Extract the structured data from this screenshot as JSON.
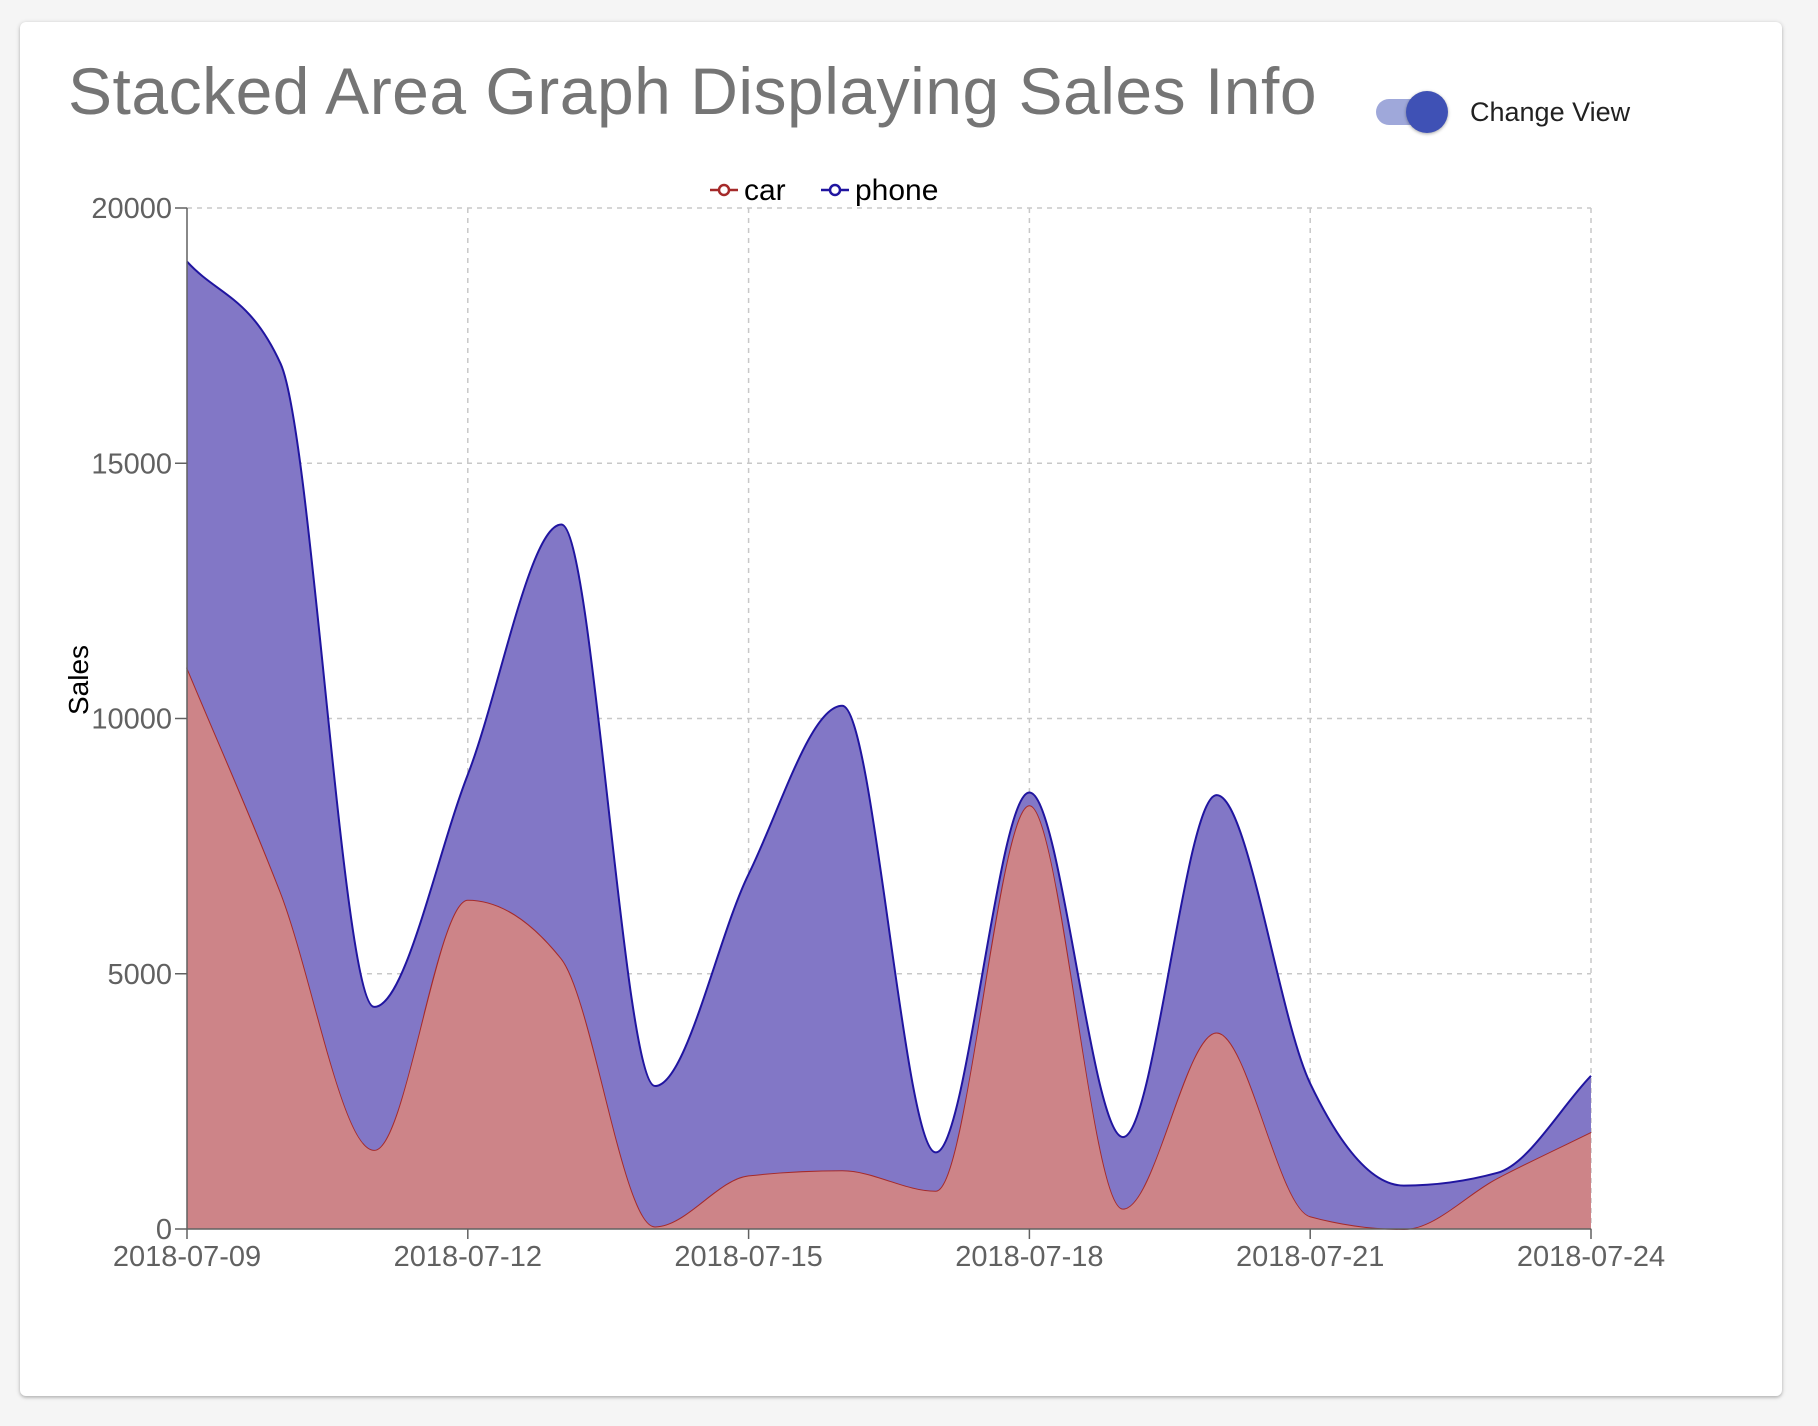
{
  "header": {
    "title": "Stacked Area Graph Displaying Sales Info",
    "toggle_label": "Change View",
    "toggle_on": true,
    "toggle_color": "#3f51b5"
  },
  "chart_data": {
    "type": "area",
    "stacked": true,
    "curve": "smooth",
    "ylabel": "Sales",
    "xlabel": "",
    "ylim": [
      0,
      20000
    ],
    "yticks": [
      0,
      5000,
      10000,
      15000,
      20000
    ],
    "x": [
      "2018-07-09",
      "2018-07-10",
      "2018-07-11",
      "2018-07-12",
      "2018-07-13",
      "2018-07-14",
      "2018-07-15",
      "2018-07-16",
      "2018-07-17",
      "2018-07-18",
      "2018-07-19",
      "2018-07-20",
      "2018-07-21",
      "2018-07-22",
      "2018-07-23",
      "2018-07-24"
    ],
    "xticks": [
      "2018-07-09",
      "2018-07-12",
      "2018-07-15",
      "2018-07-18",
      "2018-07-21",
      "2018-07-24"
    ],
    "grid": true,
    "legend_position": "top-center",
    "series": [
      {
        "name": "car",
        "color": "#a52a2a",
        "fill": "#cd8488",
        "values": [
          11000,
          6600,
          1550,
          6450,
          5300,
          50,
          1050,
          1150,
          750,
          8300,
          400,
          3850,
          250,
          0,
          1000,
          1900
        ]
      },
      {
        "name": "phone",
        "color": "#2015a0",
        "fill": "#8277c6",
        "values": [
          7950,
          10350,
          2800,
          2450,
          8500,
          2750,
          5900,
          9100,
          750,
          250,
          1400,
          4650,
          2600,
          850,
          100,
          1100
        ]
      }
    ]
  }
}
